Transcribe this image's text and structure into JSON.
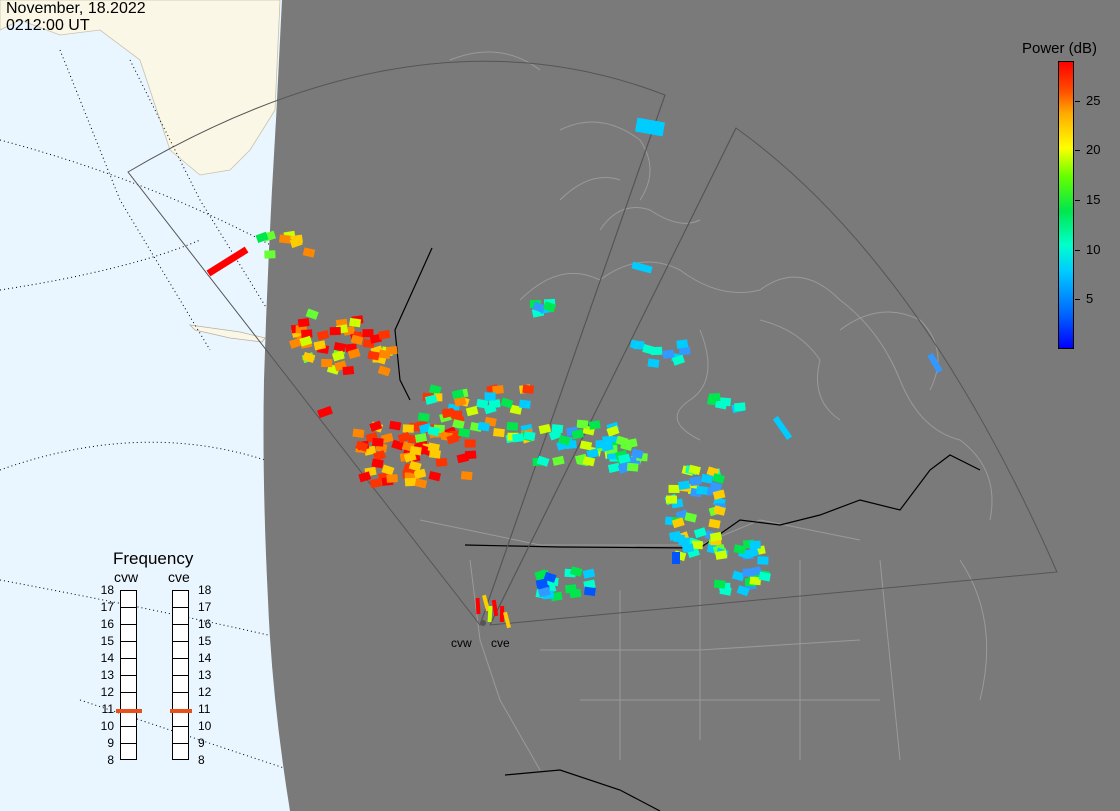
{
  "header": {
    "date": "November, 18.2022",
    "time": "0212:00 UT"
  },
  "legend": {
    "title": "Power (dB)",
    "range": [
      0,
      29
    ],
    "ticks": [
      {
        "label": "25",
        "value": 25
      },
      {
        "label": "20",
        "value": 20
      },
      {
        "label": "15",
        "value": 15
      },
      {
        "label": "10",
        "value": 10
      },
      {
        "label": "5",
        "value": 5
      }
    ]
  },
  "frequency_panel": {
    "title": "Frequency",
    "unit_note": "",
    "radars": [
      {
        "name": "cvw",
        "frequency": 10.9
      },
      {
        "name": "cve",
        "frequency": 10.9
      }
    ],
    "scale": [
      "18",
      "17",
      "16",
      "15",
      "14",
      "13",
      "12",
      "11",
      "10",
      "9",
      "8"
    ]
  },
  "sites": {
    "west_label": "cvw",
    "east_label": "cve"
  },
  "colors": {
    "night_shade": "#7a7a7a",
    "ocean": "#e9f6ff",
    "land_day": "#fbf7e6",
    "boundary": "#9a9a9a",
    "border": "#000000"
  }
}
